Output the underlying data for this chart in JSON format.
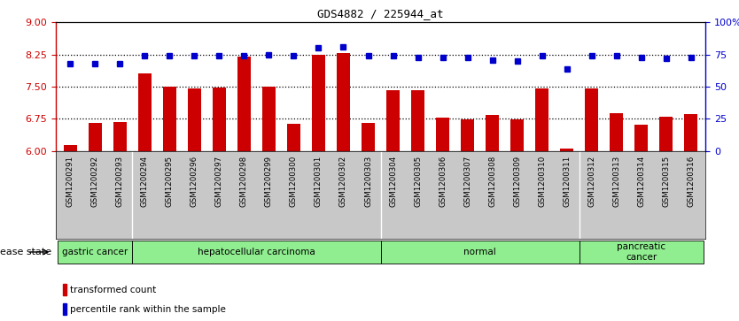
{
  "title": "GDS4882 / 225944_at",
  "samples": [
    "GSM1200291",
    "GSM1200292",
    "GSM1200293",
    "GSM1200294",
    "GSM1200295",
    "GSM1200296",
    "GSM1200297",
    "GSM1200298",
    "GSM1200299",
    "GSM1200300",
    "GSM1200301",
    "GSM1200302",
    "GSM1200303",
    "GSM1200304",
    "GSM1200305",
    "GSM1200306",
    "GSM1200307",
    "GSM1200308",
    "GSM1200309",
    "GSM1200310",
    "GSM1200311",
    "GSM1200312",
    "GSM1200313",
    "GSM1200314",
    "GSM1200315",
    "GSM1200316"
  ],
  "bar_values": [
    6.13,
    6.65,
    6.67,
    7.8,
    7.5,
    7.45,
    7.48,
    8.2,
    7.5,
    6.63,
    8.25,
    8.28,
    6.65,
    7.42,
    7.42,
    6.78,
    6.74,
    6.83,
    6.73,
    7.45,
    6.05,
    7.45,
    6.88,
    6.62,
    6.8,
    6.85
  ],
  "percentile_values": [
    68,
    68,
    68,
    74,
    74,
    74,
    74,
    74,
    75,
    74,
    80,
    81,
    74,
    74,
    73,
    73,
    73,
    71,
    70,
    74,
    64,
    74,
    74,
    73,
    72,
    73
  ],
  "bar_color": "#cc0000",
  "percentile_color": "#0000cc",
  "ylim_left": [
    6,
    9
  ],
  "ylim_right": [
    0,
    100
  ],
  "yticks_left": [
    6,
    6.75,
    7.5,
    8.25,
    9
  ],
  "yticks_right": [
    0,
    25,
    50,
    75,
    100
  ],
  "disease_groups": [
    {
      "label": "gastric cancer",
      "start": 0,
      "end": 3,
      "color": "#90ee90"
    },
    {
      "label": "hepatocellular carcinoma",
      "start": 3,
      "end": 13,
      "color": "#90ee90"
    },
    {
      "label": "normal",
      "start": 13,
      "end": 21,
      "color": "#90ee90"
    },
    {
      "label": "pancreatic\ncancer",
      "start": 21,
      "end": 26,
      "color": "#90ee90"
    }
  ],
  "disease_state_label": "disease state",
  "legend_bar_label": "transformed count",
  "legend_pct_label": "percentile rank within the sample",
  "bg_color": "#ffffff",
  "tick_area_color": "#c8c8c8",
  "right_axis_color": "#0000cc",
  "left_axis_color": "#cc0000",
  "group_dividers": [
    3,
    13,
    21
  ]
}
